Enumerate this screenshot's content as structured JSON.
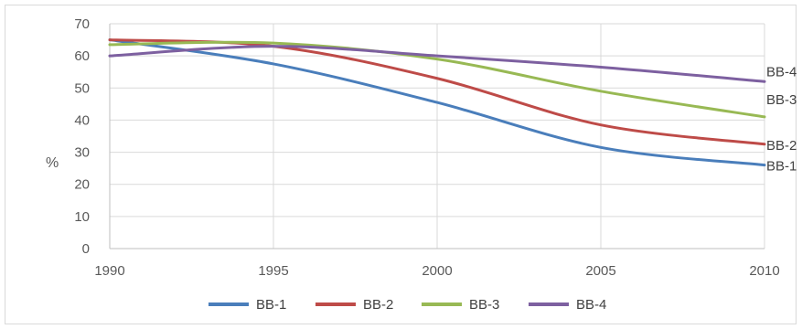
{
  "chart_data": {
    "type": "line",
    "title": "",
    "xlabel": "",
    "ylabel": "%",
    "xlim": [
      1990,
      2010
    ],
    "ylim": [
      0,
      70
    ],
    "x_ticks": [
      1990,
      1995,
      2000,
      2005,
      2010
    ],
    "y_ticks": [
      0,
      10,
      20,
      30,
      40,
      50,
      60,
      70
    ],
    "grid": true,
    "legend": "bottom",
    "x": [
      1990,
      1995,
      2000,
      2005,
      2010
    ],
    "series": [
      {
        "name": "BB-1",
        "color": "#4a7ebb",
        "values": [
          65,
          57.5,
          45.5,
          31.5,
          26
        ],
        "end_label": "BB-1"
      },
      {
        "name": "BB-2",
        "color": "#be4b48",
        "values": [
          65,
          63,
          53,
          38.5,
          32.5
        ],
        "end_label": "BB-2"
      },
      {
        "name": "BB-3",
        "color": "#98b954",
        "values": [
          63.5,
          64,
          59,
          49,
          41
        ],
        "end_label": "BB-3"
      },
      {
        "name": "BB-4",
        "color": "#7d60a0",
        "values": [
          60,
          63,
          60,
          56.5,
          52
        ],
        "end_label": "BB-4"
      }
    ]
  }
}
